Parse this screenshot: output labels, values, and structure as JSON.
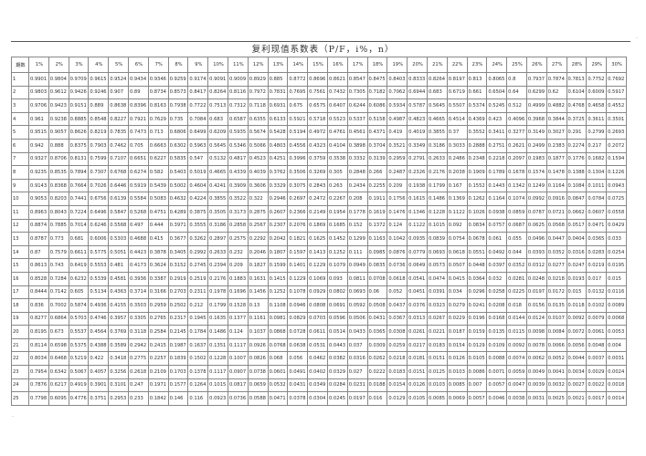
{
  "title": "复利现值系数表（P/F，i%，n）",
  "header_period": "期数",
  "rates": [
    "1%",
    "2%",
    "3%",
    "4%",
    "5%",
    "6%",
    "7%",
    "8%",
    "9%",
    "10%",
    "11%",
    "12%",
    "13%",
    "14%",
    "15%",
    "16%",
    "17%",
    "18%",
    "19%",
    "20%",
    "21%",
    "22%",
    "23%",
    "24%",
    "25%",
    "26%",
    "27%",
    "28%",
    "29%",
    "30%"
  ],
  "rows": [
    {
      "n": "1",
      "v": [
        "0.9901",
        "0.9804",
        "0.9709",
        "0.9615",
        "0.9524",
        "0.9434",
        "0.9346",
        "0.9259",
        "0.9174",
        "0.9091",
        "0.9009",
        "0.8929",
        "0.885",
        "0.8772",
        "0.8696",
        "0.8621",
        "0.8547",
        "0.8475",
        "0.8403",
        "0.8333",
        "0.8264",
        "0.8197",
        "0.813",
        "0.8065",
        "0.8",
        "0.7937",
        "0.7874",
        "0.7813",
        "0.7752",
        "0.7692"
      ]
    },
    {
      "n": "2",
      "v": [
        "0.9803",
        "0.9612",
        "0.9426",
        "0.9246",
        "0.907",
        "0.89",
        "0.8734",
        "0.8573",
        "0.8417",
        "0.8264",
        "0.8116",
        "0.7972",
        "0.7831",
        "0.7695",
        "0.7561",
        "0.7432",
        "0.7305",
        "0.7182",
        "0.7062",
        "0.6944",
        "0.683",
        "0.6719",
        "0.661",
        "0.6504",
        "0.64",
        "0.6299",
        "0.62",
        "0.6104",
        "0.6009",
        "0.5917"
      ]
    },
    {
      "n": "3",
      "v": [
        "0.9706",
        "0.9423",
        "0.9151",
        "0.889",
        "0.8638",
        "0.8396",
        "0.8163",
        "0.7938",
        "0.7722",
        "0.7513",
        "0.7312",
        "0.7118",
        "0.6931",
        "0.675",
        "0.6575",
        "0.6407",
        "0.6244",
        "0.6086",
        "0.5934",
        "0.5787",
        "0.5645",
        "0.5507",
        "0.5374",
        "0.5245",
        "0.512",
        "0.4999",
        "0.4882",
        "0.4768",
        "0.4658",
        "0.4552"
      ]
    },
    {
      "n": "4",
      "v": [
        "0.961",
        "0.9238",
        "0.8885",
        "0.8548",
        "0.8227",
        "0.7921",
        "0.7629",
        "0.735",
        "0.7084",
        "0.683",
        "0.6587",
        "0.6355",
        "0.6133",
        "0.5921",
        "0.5718",
        "0.5523",
        "0.5337",
        "0.5158",
        "0.4987",
        "0.4823",
        "0.4665",
        "0.4514",
        "0.4369",
        "0.423",
        "0.4096",
        "0.3968",
        "0.3844",
        "0.3725",
        "0.3611",
        "0.3501"
      ]
    },
    {
      "n": "5",
      "v": [
        "0.9515",
        "0.9057",
        "0.8626",
        "0.8219",
        "0.7835",
        "0.7473",
        "0.713",
        "0.6806",
        "0.6499",
        "0.6209",
        "0.5935",
        "0.5674",
        "0.5428",
        "0.5194",
        "0.4972",
        "0.4761",
        "0.4561",
        "0.4371",
        "0.419",
        "0.4019",
        "0.3855",
        "0.37",
        "0.3552",
        "0.3411",
        "0.3277",
        "0.3149",
        "0.3027",
        "0.291",
        "0.2799",
        "0.2693"
      ]
    },
    {
      "n": "6",
      "v": [
        "0.942",
        "0.888",
        "0.8375",
        "0.7903",
        "0.7462",
        "0.705",
        "0.6663",
        "0.6302",
        "0.5963",
        "0.5645",
        "0.5346",
        "0.5066",
        "0.4803",
        "0.4556",
        "0.4323",
        "0.4104",
        "0.3898",
        "0.3704",
        "0.3521",
        "0.3349",
        "0.3186",
        "0.3033",
        "0.2888",
        "0.2751",
        "0.2621",
        "0.2499",
        "0.2383",
        "0.2274",
        "0.217",
        "0.2072"
      ]
    },
    {
      "n": "7",
      "v": [
        "0.9327",
        "0.8706",
        "0.8131",
        "0.7599",
        "0.7107",
        "0.6651",
        "0.6227",
        "0.5835",
        "0.547",
        "0.5132",
        "0.4817",
        "0.4523",
        "0.4251",
        "0.3996",
        "0.3759",
        "0.3538",
        "0.3332",
        "0.3139",
        "0.2959",
        "0.2791",
        "0.2633",
        "0.2486",
        "0.2348",
        "0.2218",
        "0.2097",
        "0.1983",
        "0.1877",
        "0.1776",
        "0.1682",
        "0.1594"
      ]
    },
    {
      "n": "8",
      "v": [
        "0.9235",
        "0.8535",
        "0.7894",
        "0.7307",
        "0.6768",
        "0.6274",
        "0.582",
        "0.5403",
        "0.5019",
        "0.4665",
        "0.4339",
        "0.4039",
        "0.3762",
        "0.3506",
        "0.3269",
        "0.305",
        "0.2848",
        "0.266",
        "0.2487",
        "0.2326",
        "0.2176",
        "0.2038",
        "0.1909",
        "0.1789",
        "0.1678",
        "0.1574",
        "0.1478",
        "0.1388",
        "0.1304",
        "0.1226"
      ]
    },
    {
      "n": "9",
      "v": [
        "0.9143",
        "0.8368",
        "0.7664",
        "0.7026",
        "0.6446",
        "0.5919",
        "0.5439",
        "0.5002",
        "0.4604",
        "0.4241",
        "0.3909",
        "0.3606",
        "0.3329",
        "0.3075",
        "0.2843",
        "0.263",
        "0.2434",
        "0.2255",
        "0.209",
        "0.1938",
        "0.1799",
        "0.167",
        "0.1552",
        "0.1443",
        "0.1342",
        "0.1249",
        "0.1164",
        "0.1084",
        "0.1011",
        "0.0943"
      ]
    },
    {
      "n": "10",
      "v": [
        "0.9053",
        "0.8203",
        "0.7441",
        "0.6756",
        "0.6139",
        "0.5584",
        "0.5083",
        "0.4632",
        "0.4224",
        "0.3855",
        "0.3522",
        "0.322",
        "0.2946",
        "0.2697",
        "0.2472",
        "0.2267",
        "0.208",
        "0.1911",
        "0.1756",
        "0.1615",
        "0.1486",
        "0.1369",
        "0.1262",
        "0.1164",
        "0.1074",
        "0.0992",
        "0.0916",
        "0.0847",
        "0.0784",
        "0.0725"
      ]
    },
    {
      "n": "11",
      "v": [
        "0.8963",
        "0.8043",
        "0.7224",
        "0.6496",
        "0.5847",
        "0.5268",
        "0.4751",
        "0.4289",
        "0.3875",
        "0.3505",
        "0.3173",
        "0.2875",
        "0.2607",
        "0.2366",
        "0.2149",
        "0.1954",
        "0.1778",
        "0.1619",
        "0.1476",
        "0.1346",
        "0.1228",
        "0.1122",
        "0.1026",
        "0.0938",
        "0.0859",
        "0.0787",
        "0.0721",
        "0.0662",
        "0.0607",
        "0.0558"
      ]
    },
    {
      "n": "12",
      "v": [
        "0.8874",
        "0.7885",
        "0.7014",
        "0.6246",
        "0.5568",
        "0.497",
        "0.444",
        "0.3971",
        "0.3555",
        "0.3186",
        "0.2858",
        "0.2567",
        "0.2307",
        "0.2076",
        "0.1869",
        "0.1685",
        "0.152",
        "0.1372",
        "0.124",
        "0.1122",
        "0.1015",
        "0.092",
        "0.0834",
        "0.0757",
        "0.0687",
        "0.0625",
        "0.0568",
        "0.0517",
        "0.0471",
        "0.0429"
      ]
    },
    {
      "n": "13",
      "v": [
        "0.8787",
        "0.773",
        "0.681",
        "0.6006",
        "0.5303",
        "0.4688",
        "0.415",
        "0.3677",
        "0.3262",
        "0.2897",
        "0.2575",
        "0.2292",
        "0.2042",
        "0.1821",
        "0.1625",
        "0.1452",
        "0.1299",
        "0.1163",
        "0.1042",
        "0.0935",
        "0.0839",
        "0.0754",
        "0.0678",
        "0.061",
        "0.055",
        "0.0496",
        "0.0447",
        "0.0404",
        "0.0365",
        "0.033"
      ]
    },
    {
      "n": "14",
      "v": [
        "0.87",
        "0.7579",
        "0.6611",
        "0.5775",
        "0.5051",
        "0.4423",
        "0.3878",
        "0.3405",
        "0.2992",
        "0.2633",
        "0.232",
        "0.2046",
        "0.1807",
        "0.1597",
        "0.1413",
        "0.1252",
        "0.111",
        "0.0985",
        "0.0876",
        "0.0779",
        "0.0693",
        "0.0618",
        "0.0551",
        "0.0492",
        "0.044",
        "0.0393",
        "0.0352",
        "0.0316",
        "0.0283",
        "0.0254"
      ]
    },
    {
      "n": "15",
      "v": [
        "0.8613",
        "0.743",
        "0.6419",
        "0.5553",
        "0.481",
        "0.4173",
        "0.3624",
        "0.3152",
        "0.2745",
        "0.2394",
        "0.209",
        "0.1827",
        "0.1599",
        "0.1401",
        "0.1229",
        "0.1079",
        "0.0949",
        "0.0835",
        "0.0736",
        "0.0649",
        "0.0573",
        "0.0507",
        "0.0448",
        "0.0397",
        "0.0352",
        "0.0312",
        "0.0277",
        "0.0247",
        "0.0219",
        "0.0195"
      ]
    },
    {
      "n": "16",
      "v": [
        "0.8528",
        "0.7284",
        "0.6232",
        "0.5339",
        "0.4581",
        "0.3936",
        "0.3387",
        "0.2919",
        "0.2519",
        "0.2176",
        "0.1883",
        "0.1631",
        "0.1415",
        "0.1229",
        "0.1069",
        "0.093",
        "0.0811",
        "0.0708",
        "0.0618",
        "0.0541",
        "0.0474",
        "0.0415",
        "0.0364",
        "0.032",
        "0.0281",
        "0.0248",
        "0.0218",
        "0.0193",
        "0.017",
        "0.015"
      ]
    },
    {
      "n": "17",
      "v": [
        "0.8444",
        "0.7142",
        "0.605",
        "0.5134",
        "0.4363",
        "0.3714",
        "0.3166",
        "0.2703",
        "0.2311",
        "0.1978",
        "0.1696",
        "0.1456",
        "0.1252",
        "0.1078",
        "0.0929",
        "0.0802",
        "0.0693",
        "0.06",
        "0.052",
        "0.0451",
        "0.0391",
        "0.034",
        "0.0296",
        "0.0258",
        "0.0225",
        "0.0197",
        "0.0172",
        "0.015",
        "0.0132",
        "0.0116"
      ]
    },
    {
      "n": "18",
      "v": [
        "0.836",
        "0.7002",
        "0.5874",
        "0.4936",
        "0.4155",
        "0.3503",
        "0.2959",
        "0.2502",
        "0.212",
        "0.1799",
        "0.1528",
        "0.13",
        "0.1108",
        "0.0946",
        "0.0808",
        "0.0691",
        "0.0592",
        "0.0508",
        "0.0437",
        "0.0376",
        "0.0323",
        "0.0279",
        "0.0241",
        "0.0208",
        "0.018",
        "0.0156",
        "0.0135",
        "0.0118",
        "0.0102",
        "0.0089"
      ]
    },
    {
      "n": "19",
      "v": [
        "0.8277",
        "0.6864",
        "0.5703",
        "0.4746",
        "0.3957",
        "0.3305",
        "0.2765",
        "0.2317",
        "0.1945",
        "0.1635",
        "0.1377",
        "0.1161",
        "0.0981",
        "0.0829",
        "0.0703",
        "0.0596",
        "0.0506",
        "0.0431",
        "0.0367",
        "0.0313",
        "0.0267",
        "0.0229",
        "0.0196",
        "0.0168",
        "0.0144",
        "0.0124",
        "0.0107",
        "0.0092",
        "0.0079",
        "0.0068"
      ]
    },
    {
      "n": "20",
      "v": [
        "0.8195",
        "0.673",
        "0.5537",
        "0.4564",
        "0.3769",
        "0.3118",
        "0.2584",
        "0.2145",
        "0.1784",
        "0.1486",
        "0.124",
        "0.1037",
        "0.0868",
        "0.0728",
        "0.0611",
        "0.0514",
        "0.0433",
        "0.0365",
        "0.0308",
        "0.0261",
        "0.0221",
        "0.0187",
        "0.0159",
        "0.0135",
        "0.0115",
        "0.0098",
        "0.0084",
        "0.0072",
        "0.0061",
        "0.0053"
      ]
    },
    {
      "n": "21",
      "v": [
        "0.8114",
        "0.6598",
        "0.5375",
        "0.4388",
        "0.3589",
        "0.2942",
        "0.2415",
        "0.1987",
        "0.1637",
        "0.1351",
        "0.1117",
        "0.0926",
        "0.0768",
        "0.0638",
        "0.0531",
        "0.0443",
        "0.037",
        "0.0309",
        "0.0259",
        "0.0217",
        "0.0183",
        "0.0154",
        "0.0129",
        "0.0109",
        "0.0092",
        "0.0078",
        "0.0066",
        "0.0056",
        "0.0048",
        "0.004"
      ]
    },
    {
      "n": "22",
      "v": [
        "0.8034",
        "0.6468",
        "0.5219",
        "0.422",
        "0.3418",
        "0.2775",
        "0.2257",
        "0.1839",
        "0.1502",
        "0.1228",
        "0.1007",
        "0.0826",
        "0.068",
        "0.056",
        "0.0462",
        "0.0382",
        "0.0316",
        "0.0262",
        "0.0218",
        "0.0181",
        "0.0151",
        "0.0126",
        "0.0105",
        "0.0088",
        "0.0074",
        "0.0062",
        "0.0052",
        "0.0044",
        "0.0037",
        "0.0031"
      ]
    },
    {
      "n": "23",
      "v": [
        "0.7954",
        "0.6342",
        "0.5067",
        "0.4057",
        "0.3256",
        "0.2618",
        "0.2109",
        "0.1703",
        "0.1378",
        "0.1117",
        "0.0907",
        "0.0738",
        "0.0601",
        "0.0491",
        "0.0402",
        "0.0329",
        "0.027",
        "0.0222",
        "0.0183",
        "0.0151",
        "0.0125",
        "0.0103",
        "0.0086",
        "0.0071",
        "0.0059",
        "0.0049",
        "0.0041",
        "0.0034",
        "0.0029",
        "0.0024"
      ]
    },
    {
      "n": "24",
      "v": [
        "0.7876",
        "0.6217",
        "0.4919",
        "0.3901",
        "0.3101",
        "0.247",
        "0.1971",
        "0.1577",
        "0.1264",
        "0.1015",
        "0.0817",
        "0.0659",
        "0.0532",
        "0.0431",
        "0.0349",
        "0.0284",
        "0.0231",
        "0.0188",
        "0.0154",
        "0.0126",
        "0.0103",
        "0.0085",
        "0.007",
        "0.0057",
        "0.0047",
        "0.0039",
        "0.0032",
        "0.0027",
        "0.0022",
        "0.0018"
      ]
    },
    {
      "n": "25",
      "v": [
        "0.7798",
        "0.6095",
        "0.4776",
        "0.3751",
        "0.2953",
        "0.233",
        "0.1842",
        "0.146",
        "0.116",
        "0.0923",
        "0.0736",
        "0.0588",
        "0.0471",
        "0.0378",
        "0.0304",
        "0.0245",
        "0.0197",
        "0.016",
        "0.0129",
        "0.0105",
        "0.0085",
        "0.0069",
        "0.0057",
        "0.0046",
        "0.0038",
        "0.0031",
        "0.0025",
        "0.0021",
        "0.0017",
        "0.0014"
      ]
    }
  ]
}
